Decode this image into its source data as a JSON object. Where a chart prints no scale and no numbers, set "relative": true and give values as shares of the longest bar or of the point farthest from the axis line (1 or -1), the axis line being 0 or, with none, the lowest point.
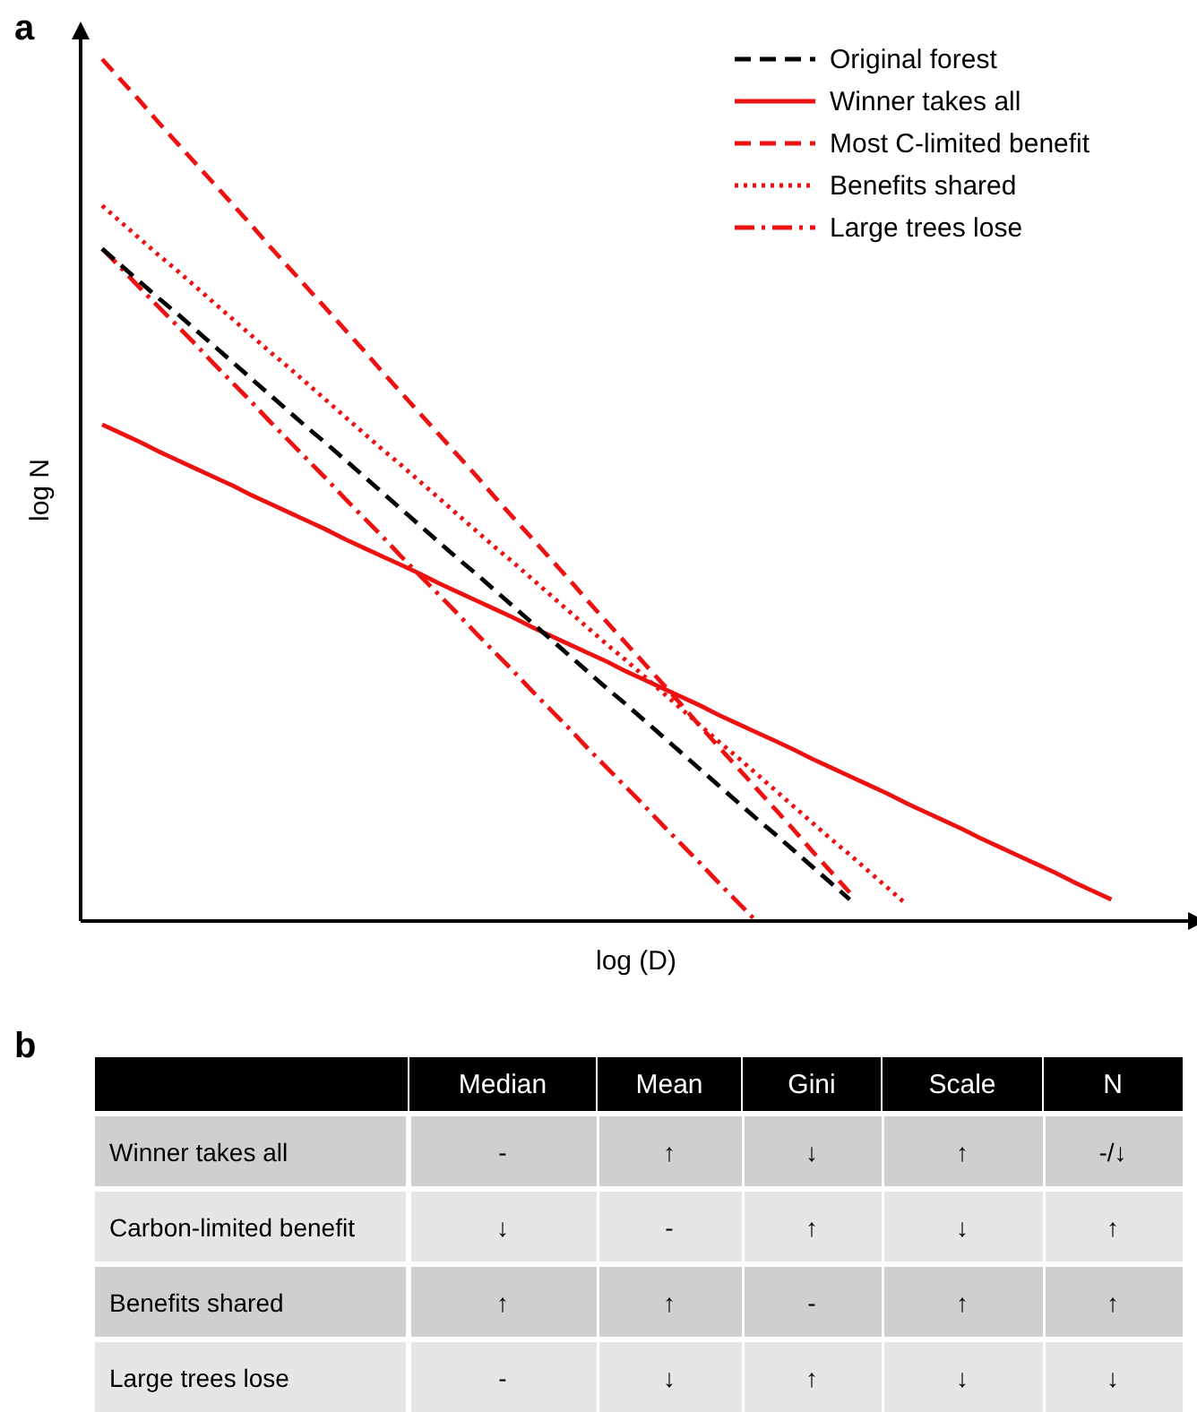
{
  "chart_data": [
    {
      "type": "line",
      "annotations": [
        "a"
      ],
      "xlabel": "log (D)",
      "ylabel": "log N",
      "relative": true,
      "legend": "top right",
      "categories": [
        null,
        null,
        null,
        null,
        null,
        null,
        null,
        null,
        null,
        null,
        null,
        null,
        null,
        null,
        null,
        null,
        null,
        null,
        null,
        null,
        null,
        null,
        null,
        null,
        null,
        null,
        null,
        null,
        null,
        null,
        null,
        null,
        null,
        null,
        null,
        null,
        null,
        null,
        null,
        null,
        null,
        null,
        null,
        null,
        null,
        null,
        null,
        null,
        null,
        null,
        null,
        null,
        null,
        null,
        null
      ],
      "series": [
        {
          "name": "Original forest",
          "color": "#000000",
          "line_style": "dashed",
          "values": [
            0.78,
            0.761,
            0.742,
            0.723,
            0.705,
            0.686,
            0.667,
            0.648,
            0.629,
            0.61,
            0.591,
            0.572,
            0.554,
            0.535,
            0.516,
            0.497,
            0.478,
            0.459,
            0.44,
            0.421,
            0.403,
            0.384,
            0.365,
            0.346,
            0.327,
            0.308,
            0.289,
            0.27,
            0.252,
            0.233,
            0.214,
            0.195,
            0.176,
            0.157,
            0.138,
            0.119,
            0.101,
            0.082,
            0.063,
            0.044,
            0.025,
            null,
            null,
            null,
            null,
            null,
            null,
            null,
            null,
            null,
            null,
            null,
            null,
            null,
            null
          ]
        },
        {
          "name": "Winner takes all",
          "color": "#ee1111",
          "line_style": "solid",
          "values": [
            0.576,
            0.566,
            0.556,
            0.545,
            0.535,
            0.525,
            0.515,
            0.505,
            0.494,
            0.484,
            0.474,
            0.464,
            0.454,
            0.443,
            0.433,
            0.423,
            0.413,
            0.403,
            0.392,
            0.382,
            0.372,
            0.362,
            0.352,
            0.341,
            0.331,
            0.321,
            0.311,
            0.301,
            0.29,
            0.28,
            0.27,
            0.26,
            0.25,
            0.239,
            0.229,
            0.219,
            0.209,
            0.199,
            0.188,
            0.178,
            0.168,
            0.158,
            0.148,
            0.137,
            0.127,
            0.117,
            0.107,
            0.096,
            0.086,
            0.076,
            0.066,
            0.056,
            0.045,
            0.035,
            0.025
          ]
        },
        {
          "name": "Most C-limited benefit",
          "color": "#ee1111",
          "line_style": "dashed",
          "values": [
            1,
            0.976,
            0.952,
            0.927,
            0.903,
            0.879,
            0.855,
            0.831,
            0.807,
            0.782,
            0.758,
            0.734,
            0.71,
            0.686,
            0.662,
            0.637,
            0.613,
            0.589,
            0.565,
            0.541,
            0.517,
            0.492,
            0.468,
            0.444,
            0.42,
            0.396,
            0.371,
            0.347,
            0.323,
            0.299,
            0.275,
            0.251,
            0.226,
            0.202,
            0.178,
            0.154,
            0.13,
            0.106,
            0.081,
            0.057,
            0.033,
            null,
            null,
            null,
            null,
            null,
            null,
            null,
            null,
            null,
            null,
            null,
            null,
            null,
            null
          ]
        },
        {
          "name": "Benefits shared",
          "color": "#ee1111",
          "line_style": "dotted",
          "values": [
            0.83,
            0.811,
            0.792,
            0.773,
            0.755,
            0.736,
            0.717,
            0.698,
            0.679,
            0.66,
            0.642,
            0.623,
            0.604,
            0.585,
            0.566,
            0.547,
            0.529,
            0.51,
            0.491,
            0.472,
            0.453,
            0.434,
            0.416,
            0.397,
            0.378,
            0.359,
            0.34,
            0.321,
            0.303,
            0.284,
            0.265,
            0.246,
            0.227,
            0.208,
            0.19,
            0.171,
            0.152,
            0.133,
            0.114,
            0.095,
            0.077,
            0.058,
            0.039,
            0.02,
            null,
            null,
            null,
            null,
            null,
            null,
            null,
            null,
            null,
            null,
            null
          ]
        },
        {
          "name": "Large trees lose",
          "color": "#ee1111",
          "line_style": "dashdot",
          "values": [
            0.78,
            0.758,
            0.735,
            0.713,
            0.691,
            0.669,
            0.646,
            0.624,
            0.602,
            0.579,
            0.557,
            0.535,
            0.513,
            0.49,
            0.468,
            0.446,
            0.423,
            0.401,
            0.379,
            0.357,
            0.334,
            0.312,
            0.29,
            0.267,
            0.245,
            0.223,
            0.2,
            0.178,
            0.156,
            0.134,
            0.111,
            0.089,
            0.067,
            0.044,
            0.022,
            0,
            null,
            null,
            null,
            null,
            null,
            null,
            null,
            null,
            null,
            null,
            null,
            null,
            null,
            null,
            null,
            null,
            null,
            null,
            null
          ]
        }
      ]
    },
    {
      "type": "other",
      "annotations": [
        "b"
      ],
      "categories": [
        "Median",
        "Mean",
        "Gini",
        "Scale",
        "N"
      ],
      "y_categories": [
        "Winner takes all",
        "Carbon-limited benefit",
        "Benefits shared",
        "Large trees lose"
      ],
      "cell_labels": [
        [
          "-",
          "↑",
          "↓",
          "↑",
          "-/↓"
        ],
        [
          "↓",
          "-",
          "↑",
          "↓",
          "↑"
        ],
        [
          "↑",
          "↑",
          "-",
          "↑",
          "↑"
        ],
        [
          "-",
          "↓",
          "↑",
          "↓",
          "↓"
        ]
      ]
    }
  ]
}
